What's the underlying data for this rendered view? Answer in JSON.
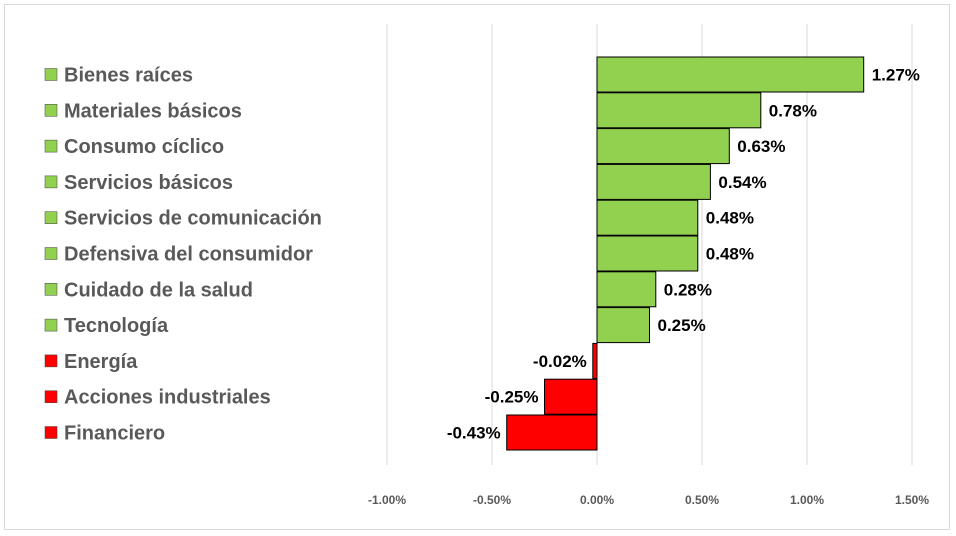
{
  "chart_data": {
    "type": "bar",
    "orientation": "horizontal",
    "title": "",
    "xlabel": "",
    "ylabel": "",
    "categories": [
      "Bienes raíces",
      "Materiales básicos",
      "Consumo cíclico",
      "Servicios básicos",
      "Servicios de comunicación",
      "Defensiva del consumidor",
      "Cuidado de la salud",
      "Tecnología",
      "Energía",
      "Acciones industriales",
      "Financiero"
    ],
    "values": [
      1.27,
      0.78,
      0.63,
      0.54,
      0.48,
      0.48,
      0.28,
      0.25,
      -0.02,
      -0.25,
      -0.43
    ],
    "value_labels": [
      "1.27%",
      "0.78%",
      "0.63%",
      "0.54%",
      "0.48%",
      "0.48%",
      "0.28%",
      "0.25%",
      "-0.02%",
      "-0.25%",
      "-0.43%"
    ],
    "xlim": [
      -1.0,
      1.5
    ],
    "ticks": [
      -1.0,
      -0.5,
      0.0,
      0.5,
      1.0,
      1.5
    ],
    "tick_labels": [
      "-1.00%",
      "-0.50%",
      "0.00%",
      "0.50%",
      "1.00%",
      "1.50%"
    ],
    "grid": true,
    "legend_position": "left",
    "colors": {
      "positive": "#92d050",
      "negative": "#ff0000",
      "bar_border": "#000000",
      "grid": "#d9d9d9",
      "label_text": "#595959"
    }
  }
}
